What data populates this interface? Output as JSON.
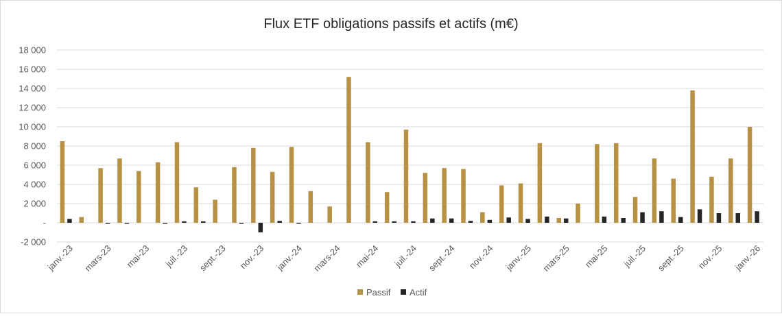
{
  "chart_data": {
    "type": "bar",
    "title": "Flux ETF obligations passifs et actifs (m€)",
    "xlabel": "",
    "ylabel": "",
    "ylim": [
      -2000,
      18000
    ],
    "yticks": [
      -2000,
      0,
      2000,
      4000,
      6000,
      8000,
      10000,
      12000,
      14000,
      16000,
      18000
    ],
    "ytick_labels": [
      "-2 000",
      "-",
      "2 000",
      "4 000",
      "6 000",
      "8 000",
      "10 000",
      "12 000",
      "14 000",
      "16 000",
      "18 000"
    ],
    "grid": true,
    "legend_position": "bottom",
    "categories": [
      "janv.-23",
      "févr.-23",
      "mars-23",
      "avr.-23",
      "mai-23",
      "juin-23",
      "juil.-23",
      "août-23",
      "sept.-23",
      "oct.-23",
      "nov.-23",
      "déc.-23",
      "janv.-24",
      "févr.-24",
      "mars-24",
      "avr.-24",
      "mai-24",
      "juin-24",
      "juil.-24",
      "août-24",
      "sept.-24",
      "oct.-24",
      "nov.-24",
      "déc.-24",
      "janv.-25",
      "févr.-25",
      "mars-25",
      "avr.-25",
      "mai-25",
      "juin-25",
      "juil.-25",
      "août-25",
      "sept.-25",
      "oct.-25",
      "nov.-25",
      "déc.-25",
      "janv.-26"
    ],
    "shown_labels": [
      "janv.-23",
      "mars-23",
      "mai-23",
      "juil.-23",
      "sept.-23",
      "nov.-23",
      "janv.-24",
      "mars-24",
      "mai-24",
      "juil.-24",
      "sept.-24",
      "nov.-24",
      "janv.-25",
      "mars-25",
      "mai-25",
      "juil.-25",
      "sept.-25",
      "nov.-25",
      "janv.-26"
    ],
    "series": [
      {
        "name": "Passif",
        "color": "#b89244",
        "values": [
          8500,
          600,
          5700,
          6700,
          5400,
          6300,
          8400,
          3700,
          2400,
          5800,
          7800,
          5300,
          7900,
          3300,
          1700,
          15200,
          8400,
          3200,
          9700,
          5200,
          5700,
          5600,
          1100,
          3900,
          4100,
          8300,
          500,
          2000,
          8200,
          8300,
          2700,
          6700,
          4600,
          13800,
          4800,
          6700,
          10000
        ]
      },
      {
        "name": "Actif",
        "color": "#262626",
        "values": [
          400,
          0,
          -100,
          -100,
          0,
          -100,
          150,
          150,
          0,
          -100,
          -1000,
          200,
          -100,
          0,
          0,
          0,
          150,
          150,
          150,
          450,
          450,
          200,
          300,
          550,
          400,
          650,
          450,
          0,
          650,
          500,
          1100,
          1200,
          600,
          1400,
          1000,
          1000,
          1200
        ]
      }
    ]
  }
}
